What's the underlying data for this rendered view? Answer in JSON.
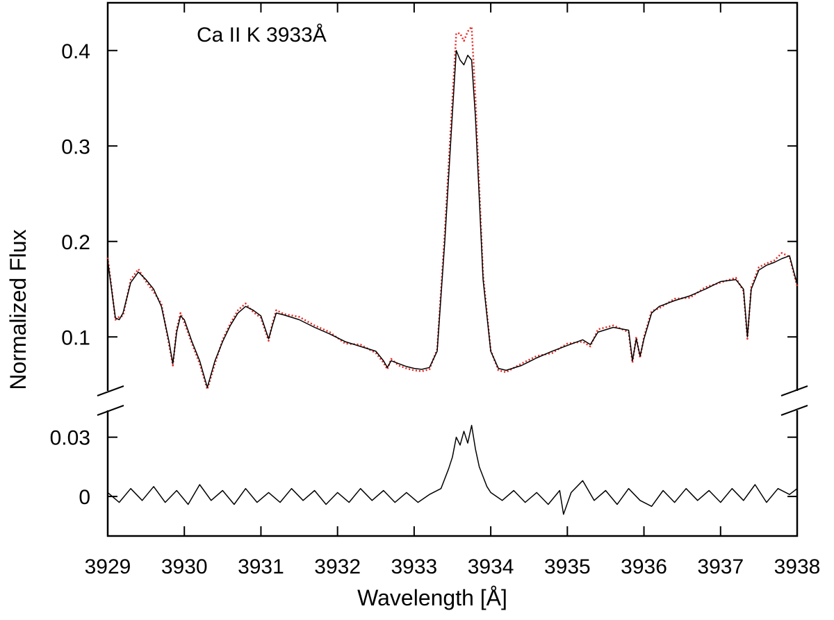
{
  "chart_data": {
    "type": "line",
    "title": "",
    "annotation": "Ca II K 3933Å",
    "xlabel": "Wavelength [Å]",
    "ylabel": "Normalized Flux",
    "xlim": [
      3929,
      3938
    ],
    "x_ticks": [
      "3929",
      "3930",
      "3931",
      "3932",
      "3933",
      "3934",
      "3935",
      "3936",
      "3937",
      "3938"
    ],
    "broken_y_axis": true,
    "upper_panel": {
      "ylim": [
        0.05,
        0.45
      ],
      "y_ticks": [
        "0.1",
        "0.2",
        "0.3",
        "0.4"
      ],
      "series": [
        {
          "style": "solid",
          "color": "#000000",
          "x": [
            3929.0,
            3929.05,
            3929.1,
            3929.15,
            3929.2,
            3929.3,
            3929.4,
            3929.5,
            3929.6,
            3929.7,
            3929.8,
            3929.85,
            3929.9,
            3929.95,
            3930.0,
            3930.1,
            3930.2,
            3930.3,
            3930.4,
            3930.5,
            3930.6,
            3930.7,
            3930.8,
            3930.9,
            3931.0,
            3931.1,
            3931.15,
            3931.2,
            3931.3,
            3931.5,
            3931.7,
            3931.9,
            3932.1,
            3932.3,
            3932.5,
            3932.6,
            3932.65,
            3932.7,
            3932.8,
            3932.9,
            3933.0,
            3933.1,
            3933.2,
            3933.3,
            3933.4,
            3933.5,
            3933.55,
            3933.6,
            3933.65,
            3933.7,
            3933.75,
            3933.8,
            3933.9,
            3934.0,
            3934.1,
            3934.2,
            3934.4,
            3934.6,
            3934.8,
            3935.0,
            3935.2,
            3935.3,
            3935.4,
            3935.6,
            3935.8,
            3935.85,
            3935.9,
            3935.95,
            3936.0,
            3936.1,
            3936.2,
            3936.4,
            3936.6,
            3936.8,
            3937.0,
            3937.2,
            3937.3,
            3937.35,
            3937.4,
            3937.5,
            3937.6,
            3937.7,
            3937.8,
            3937.9,
            3938.0
          ],
          "y": [
            0.18,
            0.15,
            0.12,
            0.118,
            0.125,
            0.157,
            0.168,
            0.16,
            0.15,
            0.132,
            0.095,
            0.072,
            0.105,
            0.122,
            0.118,
            0.095,
            0.075,
            0.047,
            0.075,
            0.095,
            0.112,
            0.125,
            0.132,
            0.128,
            0.122,
            0.098,
            0.112,
            0.125,
            0.123,
            0.118,
            0.11,
            0.103,
            0.095,
            0.09,
            0.085,
            0.075,
            0.068,
            0.075,
            0.072,
            0.069,
            0.067,
            0.066,
            0.068,
            0.085,
            0.2,
            0.335,
            0.4,
            0.39,
            0.385,
            0.395,
            0.39,
            0.33,
            0.16,
            0.085,
            0.067,
            0.065,
            0.07,
            0.078,
            0.085,
            0.091,
            0.097,
            0.092,
            0.105,
            0.11,
            0.107,
            0.075,
            0.098,
            0.08,
            0.098,
            0.125,
            0.132,
            0.138,
            0.143,
            0.15,
            0.158,
            0.16,
            0.15,
            0.1,
            0.15,
            0.17,
            0.175,
            0.178,
            0.182,
            0.185,
            0.155
          ]
        },
        {
          "style": "dotted",
          "color": "#e8231e",
          "x": [
            3929.0,
            3929.05,
            3929.1,
            3929.15,
            3929.2,
            3929.3,
            3929.4,
            3929.5,
            3929.6,
            3929.7,
            3929.8,
            3929.85,
            3929.9,
            3929.95,
            3930.0,
            3930.1,
            3930.2,
            3930.3,
            3930.4,
            3930.5,
            3930.6,
            3930.7,
            3930.8,
            3930.9,
            3931.0,
            3931.1,
            3931.15,
            3931.2,
            3931.3,
            3931.5,
            3931.7,
            3931.9,
            3932.1,
            3932.3,
            3932.5,
            3932.6,
            3932.65,
            3932.7,
            3932.8,
            3932.9,
            3933.0,
            3933.1,
            3933.2,
            3933.3,
            3933.4,
            3933.5,
            3933.55,
            3933.6,
            3933.65,
            3933.7,
            3933.75,
            3933.8,
            3933.9,
            3934.0,
            3934.1,
            3934.2,
            3934.4,
            3934.6,
            3934.8,
            3935.0,
            3935.2,
            3935.3,
            3935.4,
            3935.6,
            3935.8,
            3935.85,
            3935.9,
            3935.95,
            3936.0,
            3936.1,
            3936.2,
            3936.4,
            3936.6,
            3936.8,
            3937.0,
            3937.2,
            3937.3,
            3937.35,
            3937.4,
            3937.5,
            3937.6,
            3937.7,
            3937.8,
            3937.9,
            3938.0
          ],
          "y": [
            0.183,
            0.152,
            0.118,
            0.121,
            0.122,
            0.16,
            0.171,
            0.158,
            0.147,
            0.135,
            0.092,
            0.07,
            0.108,
            0.125,
            0.115,
            0.093,
            0.072,
            0.045,
            0.072,
            0.097,
            0.114,
            0.128,
            0.135,
            0.126,
            0.12,
            0.096,
            0.114,
            0.128,
            0.124,
            0.121,
            0.112,
            0.105,
            0.093,
            0.092,
            0.083,
            0.073,
            0.066,
            0.077,
            0.07,
            0.067,
            0.065,
            0.064,
            0.066,
            0.087,
            0.21,
            0.35,
            0.418,
            0.418,
            0.41,
            0.42,
            0.425,
            0.35,
            0.165,
            0.086,
            0.065,
            0.063,
            0.072,
            0.08,
            0.083,
            0.093,
            0.095,
            0.09,
            0.108,
            0.112,
            0.105,
            0.073,
            0.1,
            0.078,
            0.1,
            0.127,
            0.13,
            0.14,
            0.141,
            0.152,
            0.157,
            0.162,
            0.148,
            0.098,
            0.152,
            0.173,
            0.177,
            0.18,
            0.188,
            0.184,
            0.153
          ]
        }
      ]
    },
    "lower_panel": {
      "ylim": [
        -0.02,
        0.045
      ],
      "y_ticks": [
        "0",
        "0.03"
      ],
      "series": [
        {
          "style": "solid",
          "color": "#000000",
          "x": [
            3929.0,
            3929.15,
            3929.3,
            3929.45,
            3929.6,
            3929.75,
            3929.9,
            3930.05,
            3930.2,
            3930.35,
            3930.5,
            3930.65,
            3930.8,
            3930.95,
            3931.1,
            3931.25,
            3931.4,
            3931.55,
            3931.7,
            3931.85,
            3932.0,
            3932.15,
            3932.3,
            3932.45,
            3932.6,
            3932.75,
            3932.9,
            3933.05,
            3933.2,
            3933.35,
            3933.45,
            3933.5,
            3933.55,
            3933.6,
            3933.65,
            3933.7,
            3933.75,
            3933.8,
            3933.85,
            3933.9,
            3933.95,
            3934.0,
            3934.15,
            3934.3,
            3934.45,
            3934.6,
            3934.75,
            3934.9,
            3934.95,
            3935.05,
            3935.2,
            3935.35,
            3935.5,
            3935.65,
            3935.8,
            3935.95,
            3936.1,
            3936.25,
            3936.4,
            3936.55,
            3936.7,
            3936.85,
            3937.0,
            3937.15,
            3937.3,
            3937.45,
            3937.6,
            3937.75,
            3937.9,
            3938.0
          ],
          "y": [
            0.002,
            -0.003,
            0.004,
            -0.002,
            0.005,
            -0.003,
            0.003,
            -0.004,
            0.006,
            -0.002,
            0.003,
            -0.004,
            0.004,
            -0.003,
            0.002,
            -0.003,
            0.004,
            -0.002,
            0.003,
            -0.004,
            0.002,
            -0.003,
            0.004,
            -0.002,
            0.003,
            -0.003,
            0.002,
            -0.003,
            0.001,
            0.004,
            0.014,
            0.02,
            0.03,
            0.026,
            0.033,
            0.027,
            0.036,
            0.024,
            0.015,
            0.01,
            0.005,
            0.002,
            -0.002,
            0.003,
            -0.003,
            0.002,
            -0.004,
            0.003,
            -0.009,
            0.002,
            0.008,
            -0.002,
            0.003,
            -0.004,
            0.004,
            -0.002,
            -0.005,
            0.003,
            -0.003,
            0.004,
            -0.002,
            0.003,
            -0.003,
            0.004,
            -0.002,
            0.006,
            -0.003,
            0.004,
            0.001,
            0.004
          ]
        }
      ]
    }
  }
}
